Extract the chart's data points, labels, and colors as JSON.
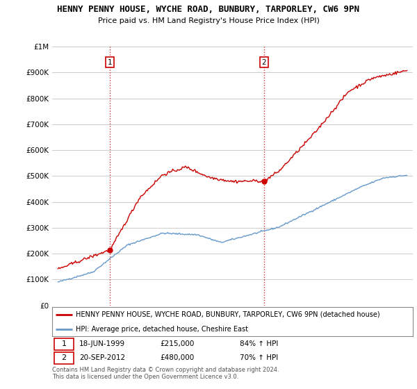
{
  "title": "HENNY PENNY HOUSE, WYCHE ROAD, BUNBURY, TARPORLEY, CW6 9PN",
  "subtitle": "Price paid vs. HM Land Registry's House Price Index (HPI)",
  "ylim": [
    0,
    1000000
  ],
  "yticks": [
    0,
    100000,
    200000,
    300000,
    400000,
    500000,
    600000,
    700000,
    800000,
    900000,
    1000000
  ],
  "ytick_labels": [
    "£0",
    "£100K",
    "£200K",
    "£300K",
    "£400K",
    "£500K",
    "£600K",
    "£700K",
    "£800K",
    "£900K",
    "£1M"
  ],
  "sale1_date": 1999.46,
  "sale1_price": 215000,
  "sale2_date": 2012.72,
  "sale2_price": 480000,
  "line1_color": "#cc0000",
  "line2_color": "#6699cc",
  "vline_color": "#cc0000",
  "background_color": "#ffffff",
  "grid_color": "#cccccc",
  "legend_line1": "HENNY PENNY HOUSE, WYCHE ROAD, BUNBURY, TARPORLEY, CW6 9PN (detached house)",
  "legend_line2": "HPI: Average price, detached house, Cheshire East",
  "sale1_label": "1",
  "sale1_info_date": "18-JUN-1999",
  "sale1_info_price": "£215,000",
  "sale1_info_hpi": "84% ↑ HPI",
  "sale2_label": "2",
  "sale2_info_date": "20-SEP-2012",
  "sale2_info_price": "£480,000",
  "sale2_info_hpi": "70% ↑ HPI",
  "footer": "Contains HM Land Registry data © Crown copyright and database right 2024.\nThis data is licensed under the Open Government Licence v3.0.",
  "xstart": 1995,
  "xend": 2025
}
